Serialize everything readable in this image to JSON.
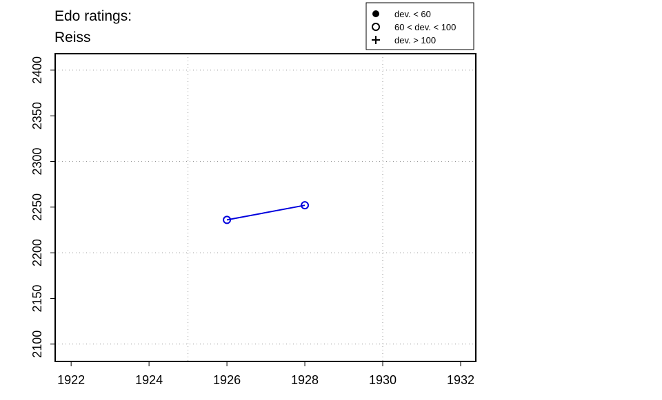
{
  "chart_data": {
    "type": "line",
    "title": "Edo ratings:",
    "subtitle": "Reiss",
    "x": [
      1926,
      1928
    ],
    "series": [
      {
        "color": "#0000dd",
        "marker": "open-circle",
        "values": [
          2236,
          2252
        ]
      }
    ],
    "xlim": [
      1921.59,
      1932.39
    ],
    "xticks": [
      1922,
      1924,
      1926,
      1928,
      1930,
      1932
    ],
    "ylim": [
      2081,
      2418
    ],
    "yticks": [
      2100,
      2150,
      2200,
      2250,
      2300,
      2350,
      2400
    ],
    "xgrid": [
      1925,
      1930
    ],
    "ygrid": [
      2100,
      2200,
      2300,
      2400
    ],
    "legend": {
      "position": "top-right",
      "entries": [
        {
          "symbol": "filled-circle",
          "label": "dev. < 60"
        },
        {
          "symbol": "open-circle",
          "label": "60 < dev. < 100"
        },
        {
          "symbol": "plus",
          "label": "dev. > 100"
        }
      ]
    }
  }
}
